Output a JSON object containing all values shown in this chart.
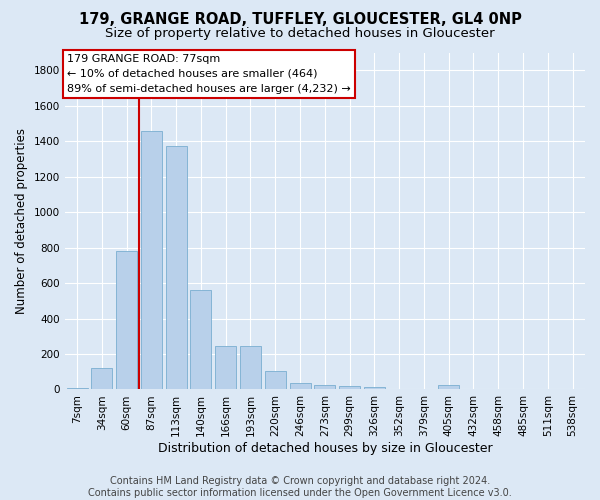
{
  "title_line1": "179, GRANGE ROAD, TUFFLEY, GLOUCESTER, GL4 0NP",
  "title_line2": "Size of property relative to detached houses in Gloucester",
  "xlabel": "Distribution of detached houses by size in Gloucester",
  "ylabel": "Number of detached properties",
  "bar_labels": [
    "7sqm",
    "34sqm",
    "60sqm",
    "87sqm",
    "113sqm",
    "140sqm",
    "166sqm",
    "193sqm",
    "220sqm",
    "246sqm",
    "273sqm",
    "299sqm",
    "326sqm",
    "352sqm",
    "379sqm",
    "405sqm",
    "432sqm",
    "458sqm",
    "485sqm",
    "511sqm",
    "538sqm"
  ],
  "bar_values": [
    10,
    120,
    780,
    1460,
    1370,
    560,
    245,
    245,
    105,
    35,
    25,
    20,
    15,
    5,
    0,
    25,
    0,
    0,
    0,
    0,
    0
  ],
  "bar_color": "#b8d0ea",
  "bar_edge_color": "#7aaed0",
  "vline_x": 2.5,
  "vline_color": "#cc0000",
  "ylim": [
    0,
    1900
  ],
  "yticks": [
    0,
    200,
    400,
    600,
    800,
    1000,
    1200,
    1400,
    1600,
    1800
  ],
  "annotation_text": "179 GRANGE ROAD: 77sqm\n← 10% of detached houses are smaller (464)\n89% of semi-detached houses are larger (4,232) →",
  "annotation_box_color": "#ffffff",
  "annotation_box_edge": "#cc0000",
  "footer_line1": "Contains HM Land Registry data © Crown copyright and database right 2024.",
  "footer_line2": "Contains public sector information licensed under the Open Government Licence v3.0.",
  "background_color": "#dce8f5",
  "plot_bg_color": "#dce8f5",
  "grid_color": "#ffffff",
  "title_fontsize": 10.5,
  "subtitle_fontsize": 9.5,
  "xlabel_fontsize": 9,
  "ylabel_fontsize": 8.5,
  "tick_fontsize": 7.5,
  "footer_fontsize": 7,
  "annotation_fontsize": 8
}
